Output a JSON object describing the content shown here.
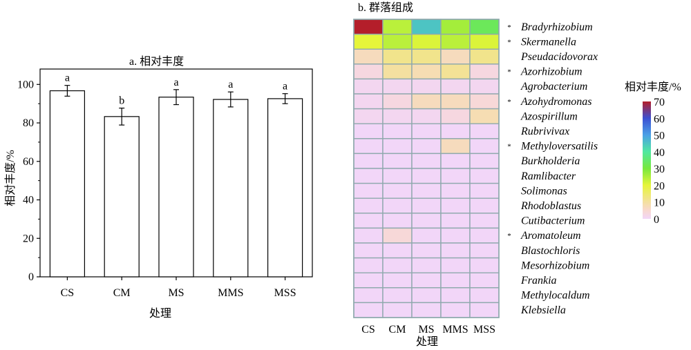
{
  "chart_data": [
    {
      "type": "bar",
      "title": "a. 相对丰度",
      "xlabel": "处理",
      "ylabel": "相对丰度/%",
      "categories": [
        "CS",
        "CM",
        "MS",
        "MMS",
        "MSS"
      ],
      "values": [
        96.7,
        83.3,
        93.4,
        92.2,
        92.6
      ],
      "errors": [
        2.8,
        4.4,
        3.9,
        3.9,
        2.6
      ],
      "significance": [
        "a",
        "b",
        "a",
        "a",
        "a"
      ],
      "ylim": [
        0,
        108
      ],
      "yticks": [
        "0",
        "20",
        "40",
        "60",
        "80",
        "100"
      ]
    },
    {
      "type": "heatmap",
      "title": "b. 群落组成",
      "xlabel": "处理",
      "columns": [
        "CS",
        "CM",
        "MS",
        "MMS",
        "MSS"
      ],
      "rows": [
        "Bradyrhizobium",
        "Skermanella",
        "Pseudacidovorax",
        "Azorhizobium",
        "Agrobacterium",
        "Azohydromonas",
        "Azospirillum",
        "Rubrivivax",
        "Methyloversatilis",
        "Burkholderia",
        "Ramlibacter",
        "Solimonas",
        "Rhodoblastus",
        "Cutibacterium",
        "Aromatoleum",
        "Blastochloris",
        "Mesorhizobium",
        "Frankia",
        "Methylocaldum",
        "Klebsiella"
      ],
      "marked_rows": [
        0,
        1,
        3,
        5,
        8,
        14
      ],
      "marker": "*",
      "values": [
        [
          70,
          24,
          45,
          26,
          33
        ],
        [
          20,
          24,
          21,
          24,
          21
        ],
        [
          7,
          12,
          12,
          7,
          12
        ],
        [
          3,
          10,
          8,
          11,
          3
        ],
        [
          1,
          1,
          1,
          1,
          1
        ],
        [
          1,
          3,
          7,
          7,
          4
        ],
        [
          1,
          1,
          1,
          3,
          8
        ],
        [
          0,
          0,
          0,
          0,
          0
        ],
        [
          0,
          0,
          0,
          7,
          0
        ],
        [
          0,
          0,
          0,
          0,
          0
        ],
        [
          0,
          0,
          0,
          0,
          0
        ],
        [
          0,
          0,
          0,
          0,
          0
        ],
        [
          0,
          0,
          0,
          0,
          0
        ],
        [
          0,
          0,
          0,
          0,
          0
        ],
        [
          0,
          4,
          0,
          0,
          0
        ],
        [
          0,
          0,
          0,
          0,
          0
        ],
        [
          0,
          0,
          0,
          0,
          0
        ],
        [
          0,
          0,
          0,
          0,
          0
        ],
        [
          0,
          0,
          0,
          0,
          0
        ],
        [
          0,
          0,
          0,
          0,
          0
        ]
      ],
      "colorbar": {
        "label": "相对丰度/%",
        "range": [
          0,
          70
        ],
        "ticks": [
          "0",
          "10",
          "20",
          "30",
          "40",
          "50",
          "60",
          "70"
        ],
        "stops": [
          {
            "v": 0,
            "c": "#f2d6f8"
          },
          {
            "v": 5,
            "c": "#f8d8d0"
          },
          {
            "v": 10,
            "c": "#f4e0a0"
          },
          {
            "v": 20,
            "c": "#e6f53a"
          },
          {
            "v": 30,
            "c": "#78e83c"
          },
          {
            "v": 40,
            "c": "#50e8a0"
          },
          {
            "v": 50,
            "c": "#4aa0e6"
          },
          {
            "v": 60,
            "c": "#3c50d2"
          },
          {
            "v": 70,
            "c": "#b41e2a"
          }
        ]
      }
    }
  ]
}
